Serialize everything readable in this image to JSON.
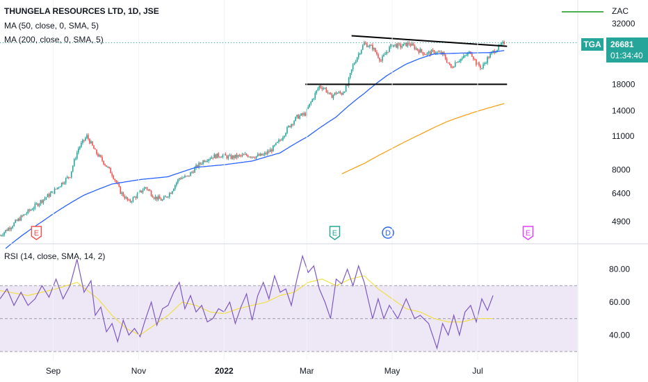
{
  "legend": {
    "title": "THUNGELA RESOURCES LTD, 1D, JSE",
    "ma50": "MA (50, close, 0, SMA, 5)",
    "ma200": "MA (200, close, 0, SMA, 5)",
    "rsi": "RSI (14, close, SMA, 14, 2)",
    "zac": "ZAC"
  },
  "last": {
    "ticker": "TGA",
    "price": "26681",
    "countdown": "01:34:40"
  },
  "colors": {
    "up": "#26a69a",
    "down": "#ef5350",
    "ma50": "#2962ff",
    "ma200": "#f7a21b",
    "rsi": "#7e57c2",
    "rsi_ma": "#f0e04a",
    "rsi_band": "#ede7f6",
    "trend": "#000000"
  },
  "chart_data": [
    {
      "type": "candlestick",
      "title": "THUNGELA RESOURCES LTD, 1D, JSE",
      "y_scale": "log",
      "ylim": [
        4000,
        40000
      ],
      "y_ticks": [
        "32000",
        "18000",
        "14000",
        "11000",
        "8000",
        "6400",
        "4900"
      ],
      "x_ticks": [
        "Sep",
        "Nov",
        "2022",
        "Mar",
        "May",
        "Jul"
      ],
      "x_tick_days": [
        38,
        99,
        160,
        219,
        280,
        341
      ],
      "x_range_days": [
        0,
        412
      ],
      "price_anchors": [
        [
          0,
          4300
        ],
        [
          8,
          4700
        ],
        [
          22,
          5500
        ],
        [
          38,
          6500
        ],
        [
          50,
          7600
        ],
        [
          56,
          9800
        ],
        [
          62,
          11000
        ],
        [
          68,
          9500
        ],
        [
          74,
          8600
        ],
        [
          80,
          7700
        ],
        [
          86,
          6500
        ],
        [
          92,
          5900
        ],
        [
          98,
          6300
        ],
        [
          104,
          6800
        ],
        [
          110,
          6200
        ],
        [
          116,
          6000
        ],
        [
          122,
          6500
        ],
        [
          128,
          7400
        ],
        [
          134,
          7500
        ],
        [
          140,
          8200
        ],
        [
          146,
          8800
        ],
        [
          152,
          9100
        ],
        [
          158,
          9200
        ],
        [
          164,
          9000
        ],
        [
          170,
          9100
        ],
        [
          176,
          9200
        ],
        [
          182,
          9100
        ],
        [
          188,
          9200
        ],
        [
          194,
          9700
        ],
        [
          200,
          10600
        ],
        [
          206,
          12000
        ],
        [
          212,
          13200
        ],
        [
          218,
          13600
        ],
        [
          224,
          16000
        ],
        [
          228,
          17700
        ],
        [
          232,
          17300
        ],
        [
          236,
          16000
        ],
        [
          240,
          16600
        ],
        [
          244,
          16500
        ],
        [
          248,
          17800
        ],
        [
          252,
          21500
        ],
        [
          256,
          24000
        ],
        [
          260,
          26500
        ],
        [
          266,
          25500
        ],
        [
          272,
          22500
        ],
        [
          276,
          24500
        ],
        [
          280,
          26200
        ],
        [
          286,
          25800
        ],
        [
          292,
          26500
        ],
        [
          298,
          25000
        ],
        [
          304,
          24000
        ],
        [
          310,
          24500
        ],
        [
          316,
          24000
        ],
        [
          322,
          21000
        ],
        [
          326,
          22500
        ],
        [
          330,
          23000
        ],
        [
          336,
          24500
        ],
        [
          340,
          22000
        ],
        [
          344,
          21000
        ],
        [
          348,
          23000
        ],
        [
          352,
          24500
        ],
        [
          356,
          25500
        ],
        [
          360,
          26681
        ]
      ],
      "ma50_anchors": [
        [
          4,
          3800
        ],
        [
          30,
          4900
        ],
        [
          60,
          6300
        ],
        [
          80,
          7000
        ],
        [
          100,
          7300
        ],
        [
          120,
          7500
        ],
        [
          140,
          8200
        ],
        [
          160,
          8400
        ],
        [
          180,
          8700
        ],
        [
          200,
          9400
        ],
        [
          220,
          11000
        ],
        [
          240,
          13200
        ],
        [
          260,
          16500
        ],
        [
          276,
          19500
        ],
        [
          290,
          21800
        ],
        [
          300,
          23000
        ],
        [
          310,
          24000
        ],
        [
          330,
          24200
        ],
        [
          350,
          24300
        ],
        [
          360,
          24800
        ]
      ],
      "ma200_anchors": [
        [
          244,
          7700
        ],
        [
          260,
          8500
        ],
        [
          280,
          9800
        ],
        [
          300,
          11200
        ],
        [
          320,
          12700
        ],
        [
          340,
          13900
        ],
        [
          360,
          15000
        ]
      ],
      "zac_level": 26681,
      "events": [
        {
          "label": "E",
          "day": 26,
          "color": "#ef5350"
        },
        {
          "label": "E",
          "day": 239,
          "color": "#26a69a"
        },
        {
          "label": "D",
          "day": 277,
          "color": "#2962ff"
        },
        {
          "label": "E",
          "day": 377,
          "color": "#e040fb"
        }
      ],
      "trend_lines": [
        [
          [
            251,
            28500
          ],
          [
            362,
            25800
          ]
        ],
        [
          [
            218,
            18000
          ],
          [
            362,
            18000
          ]
        ]
      ]
    },
    {
      "type": "line",
      "title": "RSI (14, close, SMA, 14, 2)",
      "ylim": [
        25,
        95
      ],
      "y_ticks": [
        80,
        60,
        40
      ],
      "bands": [
        30,
        50,
        70
      ],
      "rsi_anchors": [
        [
          0,
          62
        ],
        [
          5,
          68
        ],
        [
          10,
          58
        ],
        [
          15,
          66
        ],
        [
          20,
          58
        ],
        [
          25,
          62
        ],
        [
          30,
          70
        ],
        [
          35,
          63
        ],
        [
          40,
          74
        ],
        [
          45,
          62
        ],
        [
          50,
          70
        ],
        [
          55,
          86
        ],
        [
          60,
          66
        ],
        [
          65,
          73
        ],
        [
          68,
          52
        ],
        [
          72,
          57
        ],
        [
          76,
          42
        ],
        [
          80,
          47
        ],
        [
          84,
          36
        ],
        [
          88,
          49
        ],
        [
          92,
          40
        ],
        [
          96,
          44
        ],
        [
          100,
          39
        ],
        [
          104,
          50
        ],
        [
          108,
          60
        ],
        [
          112,
          46
        ],
        [
          116,
          56
        ],
        [
          120,
          58
        ],
        [
          124,
          66
        ],
        [
          128,
          72
        ],
        [
          132,
          56
        ],
        [
          136,
          64
        ],
        [
          140,
          54
        ],
        [
          144,
          58
        ],
        [
          148,
          48
        ],
        [
          152,
          50
        ],
        [
          156,
          56
        ],
        [
          160,
          54
        ],
        [
          164,
          60
        ],
        [
          168,
          47
        ],
        [
          172,
          57
        ],
        [
          176,
          65
        ],
        [
          180,
          49
        ],
        [
          184,
          64
        ],
        [
          188,
          72
        ],
        [
          192,
          62
        ],
        [
          196,
          76
        ],
        [
          200,
          66
        ],
        [
          204,
          68
        ],
        [
          208,
          58
        ],
        [
          212,
          74
        ],
        [
          216,
          88
        ],
        [
          220,
          78
        ],
        [
          224,
          82
        ],
        [
          228,
          68
        ],
        [
          232,
          60
        ],
        [
          236,
          50
        ],
        [
          240,
          74
        ],
        [
          244,
          71
        ],
        [
          248,
          80
        ],
        [
          252,
          70
        ],
        [
          256,
          82
        ],
        [
          260,
          72
        ],
        [
          266,
          50
        ],
        [
          270,
          62
        ],
        [
          274,
          50
        ],
        [
          278,
          58
        ],
        [
          284,
          50
        ],
        [
          290,
          62
        ],
        [
          296,
          50
        ],
        [
          300,
          52
        ],
        [
          306,
          47
        ],
        [
          312,
          32
        ],
        [
          316,
          47
        ],
        [
          320,
          40
        ],
        [
          324,
          52
        ],
        [
          328,
          40
        ],
        [
          332,
          54
        ],
        [
          336,
          58
        ],
        [
          340,
          48
        ],
        [
          344,
          62
        ],
        [
          348,
          55
        ],
        [
          352,
          64
        ]
      ],
      "rsi_ma_anchors": [
        [
          0,
          67
        ],
        [
          20,
          64
        ],
        [
          40,
          68
        ],
        [
          55,
          72
        ],
        [
          70,
          62
        ],
        [
          80,
          52
        ],
        [
          90,
          44
        ],
        [
          100,
          40
        ],
        [
          110,
          46
        ],
        [
          120,
          52
        ],
        [
          130,
          60
        ],
        [
          140,
          58
        ],
        [
          150,
          54
        ],
        [
          160,
          53
        ],
        [
          170,
          56
        ],
        [
          180,
          58
        ],
        [
          190,
          60
        ],
        [
          200,
          64
        ],
        [
          210,
          66
        ],
        [
          220,
          72
        ],
        [
          230,
          74
        ],
        [
          240,
          70
        ],
        [
          250,
          74
        ],
        [
          260,
          76
        ],
        [
          270,
          68
        ],
        [
          280,
          62
        ],
        [
          290,
          56
        ],
        [
          300,
          54
        ],
        [
          310,
          50
        ],
        [
          320,
          48
        ],
        [
          330,
          48
        ],
        [
          340,
          50
        ],
        [
          350,
          50
        ],
        [
          352,
          50
        ]
      ]
    }
  ]
}
